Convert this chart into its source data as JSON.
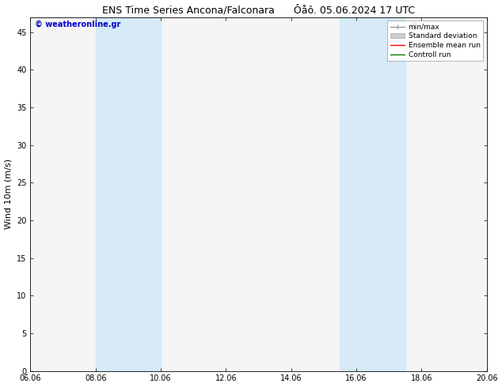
{
  "title": "ENS Time Series Ancona/Falconara      Ôåô. 05.06.2024 17 UTC",
  "ylabel": "Wind 10m (m/s)",
  "ylim": [
    0,
    47
  ],
  "yticks": [
    0,
    5,
    10,
    15,
    20,
    25,
    30,
    35,
    40,
    45
  ],
  "xtick_labels": [
    "06.06",
    "08.06",
    "10.06",
    "12.06",
    "14.06",
    "16.06",
    "18.06",
    "20.06"
  ],
  "xtick_positions": [
    0,
    2,
    4,
    6,
    8,
    10,
    12,
    14
  ],
  "xlim": [
    0,
    14
  ],
  "shaded_bands": [
    {
      "x_start": 2,
      "x_end": 4
    },
    {
      "x_start": 9.5,
      "x_end": 10.5
    },
    {
      "x_start": 10.5,
      "x_end": 11.5
    }
  ],
  "shade_color": "#d6eaf8",
  "bg_color": "#ffffff",
  "plot_bg_color": "#f5f5f5",
  "watermark_text": "© weatheronline.gr",
  "watermark_color": "#0000cc",
  "legend_items": [
    {
      "label": "min/max",
      "color": "#999999",
      "lw": 1.0
    },
    {
      "label": "Standard deviation",
      "color": "#cccccc",
      "lw": 5
    },
    {
      "label": "Ensemble mean run",
      "color": "#ff0000",
      "lw": 1.0
    },
    {
      "label": "Controll run",
      "color": "#008000",
      "lw": 1.0
    }
  ],
  "font_size_title": 9,
  "font_size_ticks": 7,
  "font_size_ylabel": 8,
  "font_size_watermark": 7,
  "font_size_legend": 6.5
}
